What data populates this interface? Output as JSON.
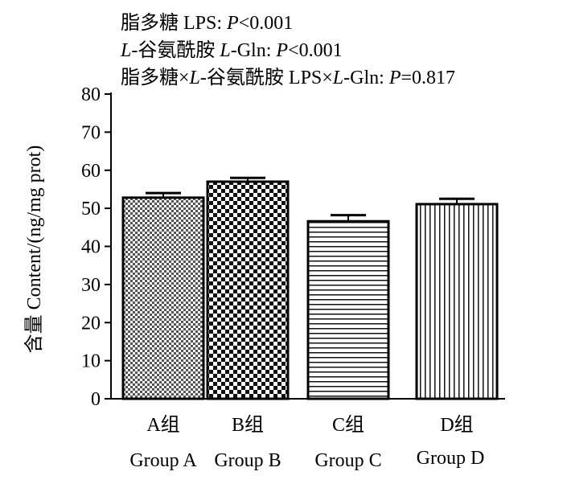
{
  "chart_data": {
    "type": "bar",
    "stat_lines": [
      {
        "cn": "脂多糖",
        "en_plain": "LPS: ",
        "en_italic": "P",
        "en_rest": "<0.001"
      },
      {
        "cn_italic": "L",
        "cn": "-谷氨酰胺",
        "en_italic_a": "L",
        "en_plain": "-Gln: ",
        "en_italic": "P",
        "en_rest": "<0.001"
      },
      {
        "cn": "脂多糖×",
        "cn_italic": "L",
        "cn2": "-谷氨酰胺",
        "en_plain": "LPS×",
        "en_italic_a": "L",
        "en_plain2": "-Gln: ",
        "en_italic": "P",
        "en_rest": "=0.817"
      }
    ],
    "ylabel_cn": "含量",
    "ylabel_en": "Content/(ng/mg prot)",
    "ylim": [
      0,
      80
    ],
    "yticks": [
      0,
      10,
      20,
      30,
      40,
      50,
      60,
      70,
      80
    ],
    "categories": [
      {
        "cn": "A组",
        "en": "Group A"
      },
      {
        "cn": "B组",
        "en": "Group B"
      },
      {
        "cn": "C组",
        "en": "Group C"
      },
      {
        "cn": "D组",
        "en": "Group D"
      }
    ],
    "values": [
      52.8,
      57.0,
      46.6,
      51.1
    ],
    "errors": [
      1.2,
      1.0,
      1.6,
      1.4
    ],
    "patterns": [
      "fine-checker",
      "coarse-checker",
      "horizontal-stripes",
      "vertical-stripes"
    ],
    "grid": false,
    "colors": {
      "bar_stroke": "#000000",
      "fill": "#000000",
      "background": "#ffffff"
    }
  }
}
